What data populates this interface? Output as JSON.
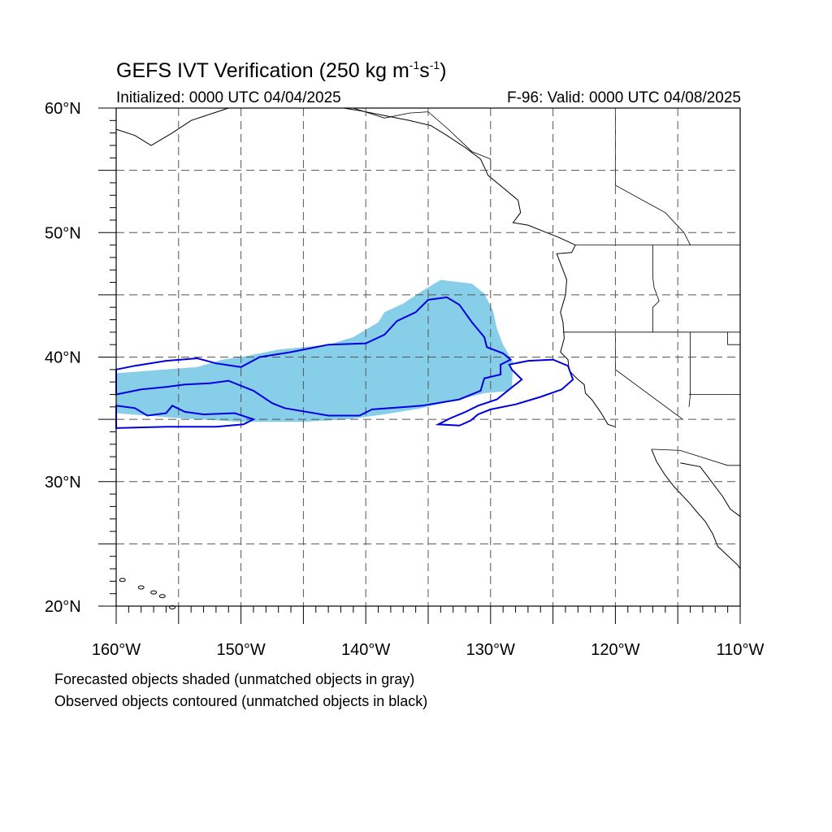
{
  "title": {
    "main": "GEFS IVT Verification (250 kg m",
    "sup1": "-1",
    "mid": "s",
    "sup2": "-1",
    "end": ")"
  },
  "initialized": "Initialized: 0000 UTC 04/04/2025",
  "valid": "F-96: Valid: 0000 UTC 04/08/2025",
  "lat_labels": [
    "60°N",
    "50°N",
    "40°N",
    "30°N",
    "20°N"
  ],
  "lon_labels": [
    "160°W",
    "150°W",
    "140°W",
    "130°W",
    "120°W",
    "110°W"
  ],
  "legend": {
    "forecast_note": "Forecasted objects shaded (unmatched objects in gray)",
    "observed_note": "Observed objects contoured (unmatched objects in black)"
  },
  "map_extent": {
    "lon": [
      -160,
      -110
    ],
    "lat": [
      20,
      60
    ]
  },
  "colors": {
    "forecast_fill": "#87cee8",
    "observed_contour": "#0000e0",
    "coastline": "#000000",
    "grid": "#555555"
  },
  "forecast_object_matched": [
    [
      -160,
      38.7
    ],
    [
      -153.5,
      39.2
    ],
    [
      -151.5,
      39.8
    ],
    [
      -149.5,
      40.1
    ],
    [
      -147,
      40.6
    ],
    [
      -143,
      41.0
    ],
    [
      -141,
      41.6
    ],
    [
      -139,
      42.8
    ],
    [
      -138.5,
      43.6
    ],
    [
      -137,
      44.3
    ],
    [
      -135.5,
      45.3
    ],
    [
      -134,
      46.2
    ],
    [
      -131.5,
      45.9
    ],
    [
      -130.5,
      45.1
    ],
    [
      -129.8,
      43.7
    ],
    [
      -129.5,
      42.3
    ],
    [
      -129.0,
      41.0
    ],
    [
      -128.2,
      39.6
    ],
    [
      -128.3,
      37.3
    ],
    [
      -130.5,
      37.1
    ],
    [
      -132.5,
      36.6
    ],
    [
      -135.5,
      35.9
    ],
    [
      -138.5,
      35.4
    ],
    [
      -141.5,
      35.0
    ],
    [
      -145,
      34.8
    ],
    [
      -150,
      34.8
    ],
    [
      -155,
      35.1
    ],
    [
      -160,
      35.5
    ]
  ],
  "observed_object_1_matched": [
    [
      -160,
      39.0
    ],
    [
      -158.5,
      39.3
    ],
    [
      -156,
      39.7
    ],
    [
      -153.5,
      39.9
    ],
    [
      -152,
      39.5
    ],
    [
      -150,
      39.2
    ],
    [
      -148.5,
      40.0
    ],
    [
      -146,
      40.4
    ],
    [
      -143,
      41.0
    ],
    [
      -140,
      41.1
    ],
    [
      -138.5,
      41.8
    ],
    [
      -137.5,
      42.9
    ],
    [
      -136,
      43.6
    ],
    [
      -135,
      44.6
    ],
    [
      -133.5,
      44.8
    ],
    [
      -132.5,
      44.2
    ],
    [
      -131.5,
      42.8
    ],
    [
      -130.5,
      41.6
    ],
    [
      -130.3,
      40.8
    ],
    [
      -129,
      40.3
    ],
    [
      -128.4,
      39.8
    ],
    [
      -129.2,
      39.4
    ],
    [
      -129.2,
      38.6
    ],
    [
      -130.5,
      38.3
    ],
    [
      -130.8,
      37.3
    ],
    [
      -132.5,
      36.6
    ],
    [
      -135.5,
      36.1
    ],
    [
      -139.5,
      35.8
    ],
    [
      -140.5,
      35.3
    ],
    [
      -143,
      35.3
    ],
    [
      -146.5,
      35.9
    ],
    [
      -147.5,
      36.3
    ],
    [
      -149,
      37.3
    ],
    [
      -151,
      38.1
    ],
    [
      -152.5,
      37.9
    ],
    [
      -154.5,
      37.8
    ],
    [
      -156,
      37.6
    ],
    [
      -158,
      37.4
    ],
    [
      -160,
      37.0
    ]
  ],
  "observed_object_1_inner": [
    [
      -160,
      36.1
    ],
    [
      -158.5,
      35.9
    ],
    [
      -157.5,
      35.3
    ],
    [
      -156,
      35.5
    ],
    [
      -155.5,
      36.1
    ],
    [
      -154.5,
      35.6
    ],
    [
      -153,
      35.4
    ],
    [
      -150.5,
      35.5
    ],
    [
      -149,
      35.0
    ],
    [
      -149.8,
      34.6
    ],
    [
      -152,
      34.4
    ],
    [
      -156,
      34.4
    ],
    [
      -160,
      34.3
    ]
  ],
  "observed_object_2": [
    [
      -128.5,
      39.4
    ],
    [
      -127,
      39.7
    ],
    [
      -125,
      39.8
    ],
    [
      -123.8,
      39.3
    ],
    [
      -123.4,
      38.2
    ],
    [
      -124.3,
      37.4
    ],
    [
      -126,
      36.8
    ],
    [
      -128,
      36.2
    ],
    [
      -130,
      35.8
    ],
    [
      -131,
      35.4
    ],
    [
      -131.6,
      34.9
    ],
    [
      -132.5,
      34.5
    ],
    [
      -134.2,
      34.6
    ],
    [
      -133.2,
      35.1
    ],
    [
      -132,
      35.6
    ],
    [
      -131,
      36.1
    ],
    [
      -129.5,
      36.6
    ],
    [
      -128.5,
      37.4
    ],
    [
      -127.5,
      38.2
    ],
    [
      -128.3,
      39.0
    ]
  ],
  "coastline_na": [
    [
      -120,
      34.4
    ],
    [
      -120.6,
      34.6
    ],
    [
      -121.2,
      35.6
    ],
    [
      -121.9,
      36.6
    ],
    [
      -122.4,
      37.1
    ],
    [
      -122.5,
      37.8
    ],
    [
      -123.0,
      38.2
    ],
    [
      -123.7,
      38.9
    ],
    [
      -123.8,
      39.8
    ],
    [
      -124.4,
      40.4
    ],
    [
      -124.1,
      41.5
    ],
    [
      -124.2,
      42.8
    ],
    [
      -124.4,
      43.6
    ],
    [
      -124.0,
      45.0
    ],
    [
      -123.9,
      46.2
    ],
    [
      -124.2,
      47.0
    ],
    [
      -124.7,
      48.3
    ],
    [
      -123.5,
      48.4
    ],
    [
      -123.2,
      49.0
    ],
    [
      -124.5,
      49.6
    ],
    [
      -125.5,
      50.0
    ],
    [
      -127,
      50.6
    ],
    [
      -128.2,
      50.8
    ],
    [
      -127.6,
      51.6
    ],
    [
      -127.8,
      52.6
    ],
    [
      -129.0,
      53.6
    ],
    [
      -130.2,
      54.6
    ],
    [
      -130.8,
      55.9
    ],
    [
      -132.0,
      56.8
    ],
    [
      -133.5,
      57.8
    ],
    [
      -134.8,
      58.6
    ],
    [
      -136.5,
      59.0
    ],
    [
      -138.5,
      59.4
    ],
    [
      -140.5,
      59.8
    ],
    [
      -141.8,
      60.0
    ]
  ],
  "coastline_baja": [
    [
      -117.1,
      32.6
    ],
    [
      -116.7,
      31.6
    ],
    [
      -116.0,
      30.5
    ],
    [
      -115.3,
      29.6
    ],
    [
      -114.0,
      28.2
    ],
    [
      -113.5,
      27.6
    ],
    [
      -112.8,
      26.8
    ],
    [
      -112.2,
      25.8
    ],
    [
      -111.8,
      24.8
    ],
    [
      -110.2,
      23.3
    ],
    [
      -110,
      23.0
    ]
  ],
  "coastline_mainland_mx": [
    [
      -114.8,
      31.5
    ],
    [
      -113.2,
      31.2
    ],
    [
      -112.3,
      30.0
    ],
    [
      -111.4,
      28.8
    ],
    [
      -110.8,
      27.8
    ],
    [
      -110.0,
      27.2
    ]
  ],
  "coastline_alaska_w": [
    [
      -160,
      58.3
    ],
    [
      -158.5,
      57.8
    ],
    [
      -157.2,
      57.0
    ],
    [
      -155.5,
      58.0
    ],
    [
      -154.0,
      59.0
    ],
    [
      -152.2,
      59.6
    ],
    [
      -151.0,
      60.0
    ]
  ],
  "hawaii_islands": [
    [
      -159.5,
      22.1
    ],
    [
      -158.0,
      21.5
    ],
    [
      -157.0,
      21.1
    ],
    [
      -156.3,
      20.8
    ],
    [
      -155.5,
      19.9
    ]
  ],
  "borders": [
    [
      [
        -123.2,
        49.0
      ],
      [
        -110,
        49.0
      ]
    ],
    [
      [
        -124.2,
        42.0
      ],
      [
        -110,
        42.0
      ]
    ],
    [
      [
        -120.0,
        42.0
      ],
      [
        -120.0,
        39.0
      ],
      [
        -114.6,
        35.0
      ]
    ],
    [
      [
        -117.1,
        32.6
      ],
      [
        -114.8,
        32.5
      ],
      [
        -111.0,
        31.3
      ],
      [
        -110,
        31.3
      ]
    ],
    [
      [
        -117.0,
        49.0
      ],
      [
        -117.0,
        46.4
      ],
      [
        -116.9,
        45.6
      ]
    ],
    [
      [
        -116.9,
        45.6
      ],
      [
        -116.5,
        44.5
      ],
      [
        -117.0,
        44.0
      ],
      [
        -117.0,
        42.0
      ]
    ],
    [
      [
        -111.0,
        45.0
      ],
      [
        -110,
        45.0
      ]
    ],
    [
      [
        -111.0,
        42.0
      ],
      [
        -111.0,
        41.0
      ],
      [
        -110,
        41.0
      ]
    ],
    [
      [
        -114.0,
        42.0
      ],
      [
        -114.0,
        37.0
      ],
      [
        -114.1,
        36.0
      ]
    ],
    [
      [
        -114.1,
        37.0
      ],
      [
        -110,
        37.0
      ]
    ],
    [
      [
        -120,
        60.0
      ],
      [
        -120,
        53.8
      ],
      [
        -116.0,
        51.6
      ],
      [
        -114.5,
        50.0
      ],
      [
        -114.0,
        49.0
      ]
    ],
    [
      [
        -141.0,
        60.0
      ],
      [
        -138.5,
        59.2
      ],
      [
        -136.5,
        59.6
      ],
      [
        -135.0,
        59.7
      ],
      [
        -133.5,
        58.4
      ],
      [
        -131.5,
        56.5
      ],
      [
        -130.0,
        55.9
      ],
      [
        -130.0,
        55.0
      ]
    ]
  ]
}
